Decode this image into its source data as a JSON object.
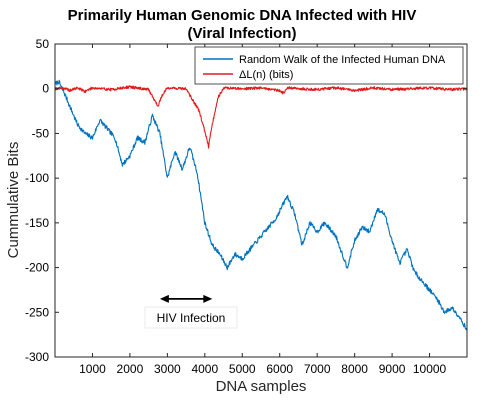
{
  "chart_data": {
    "type": "line",
    "title": "Primarily Human Genomic DNA Infected with HIV",
    "subtitle": "(Viral Infection)",
    "xlabel": "DNA samples",
    "ylabel": "Cummulative Bits",
    "xlim": [
      0,
      11000
    ],
    "ylim": [
      -300,
      50
    ],
    "xticks": [
      1000,
      2000,
      3000,
      4000,
      5000,
      6000,
      7000,
      8000,
      9000,
      10000
    ],
    "yticks": [
      50,
      0,
      -50,
      -100,
      -150,
      -200,
      -250,
      -300
    ],
    "legend_position": "top-right",
    "series": [
      {
        "name": "Random Walk of the Infected Human DNA",
        "color": "#0072BD",
        "x": [
          0,
          100,
          250,
          400,
          600,
          800,
          1000,
          1200,
          1400,
          1600,
          1800,
          2000,
          2200,
          2400,
          2600,
          2800,
          3000,
          3200,
          3400,
          3600,
          3800,
          4000,
          4200,
          4400,
          4600,
          4800,
          5000,
          5300,
          5600,
          5900,
          6200,
          6400,
          6600,
          6800,
          7000,
          7200,
          7500,
          7800,
          8000,
          8200,
          8400,
          8600,
          8800,
          9000,
          9200,
          9400,
          9600,
          9800,
          10000,
          10200,
          10400,
          10600,
          10800,
          11000
        ],
        "y": [
          5,
          8,
          -5,
          -20,
          -40,
          -50,
          -55,
          -35,
          -45,
          -55,
          -85,
          -75,
          -55,
          -60,
          -30,
          -50,
          -100,
          -70,
          -90,
          -65,
          -95,
          -150,
          -175,
          -185,
          -200,
          -185,
          -190,
          -175,
          -160,
          -145,
          -120,
          -140,
          -175,
          -150,
          -160,
          -150,
          -165,
          -200,
          -170,
          -155,
          -160,
          -135,
          -140,
          -170,
          -195,
          -180,
          -205,
          -215,
          -225,
          -235,
          -250,
          -245,
          -255,
          -270
        ]
      },
      {
        "name": "ΔL(n) (bits)",
        "color": "#E31A1C",
        "x": [
          0,
          200,
          400,
          600,
          800,
          1000,
          1500,
          2000,
          2500,
          2650,
          2750,
          2850,
          3000,
          3500,
          3850,
          3950,
          4050,
          4100,
          4150,
          4250,
          4350,
          4500,
          5000,
          5500,
          6000,
          6100,
          6200,
          6500,
          7000,
          7500,
          8000,
          8500,
          9000,
          9500,
          10000,
          10500,
          11000
        ],
        "y": [
          0,
          1,
          -2,
          1,
          -3,
          1,
          -1,
          2,
          -1,
          -12,
          -20,
          -8,
          1,
          0,
          -25,
          -40,
          -55,
          -65,
          -50,
          -30,
          -10,
          1,
          0,
          1,
          -2,
          -5,
          1,
          0,
          -1,
          1,
          -2,
          1,
          -1,
          0,
          1,
          -1,
          0
        ]
      }
    ],
    "annotation": {
      "text": "HIV Infection",
      "arrow_from_x": 2800,
      "arrow_to_x": 4200,
      "arrow_y": -235
    }
  }
}
